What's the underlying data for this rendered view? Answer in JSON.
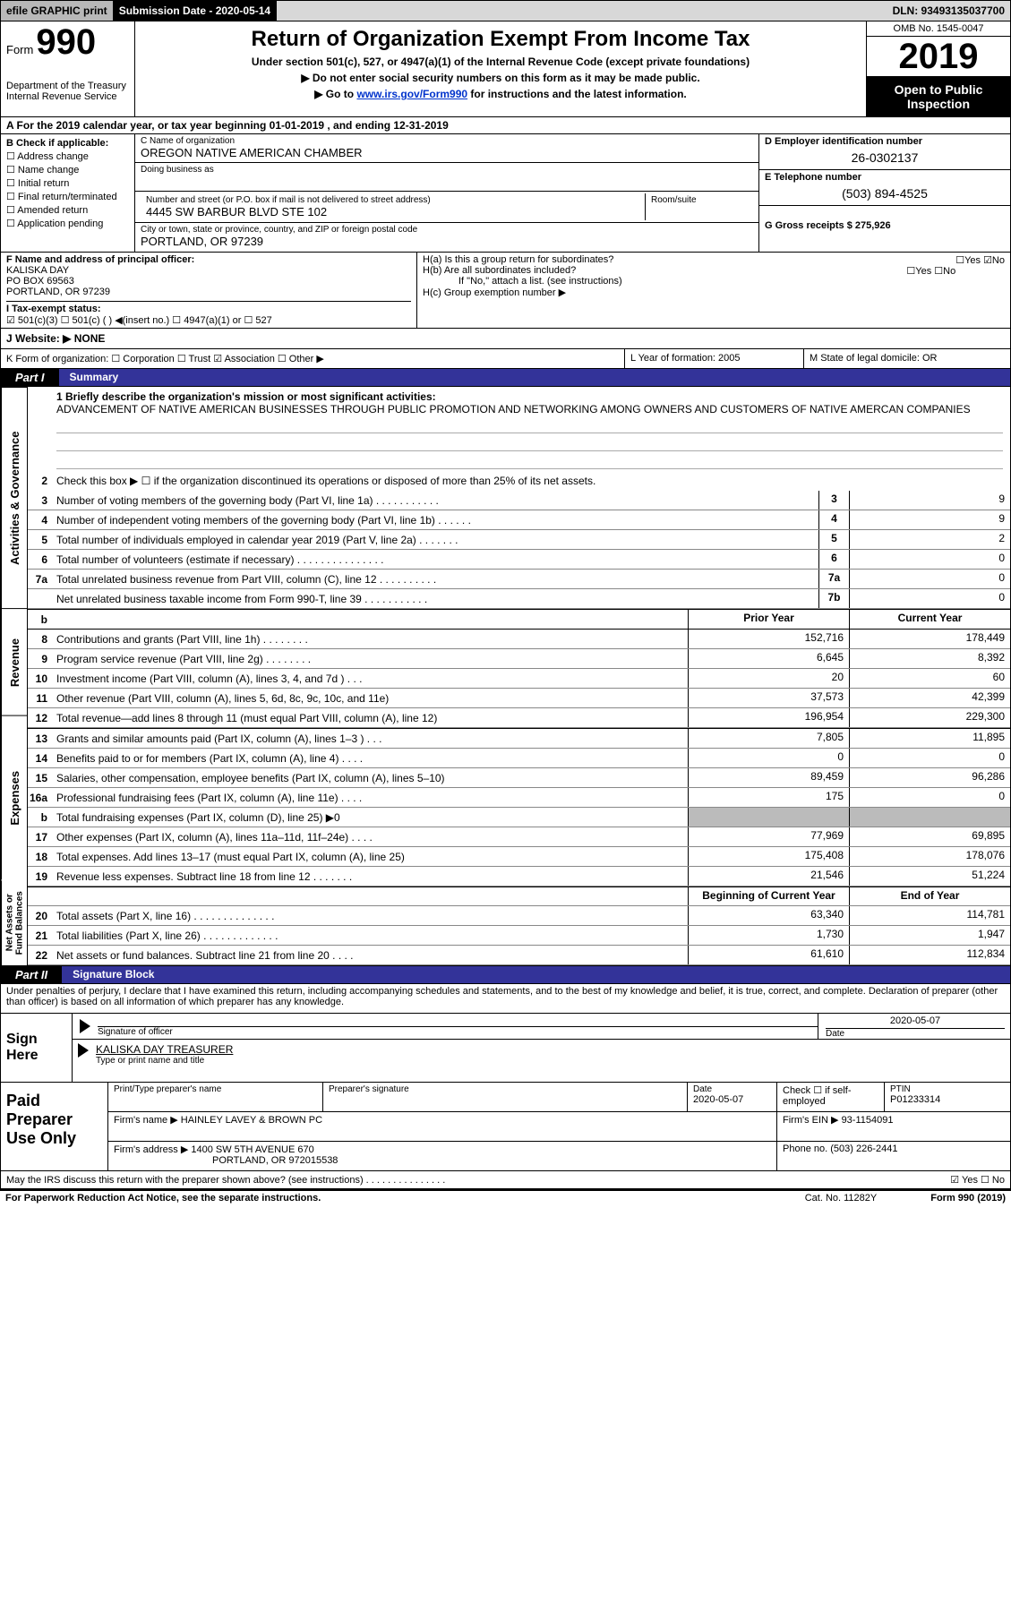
{
  "topbar": {
    "efile": "efile GRAPHIC print",
    "submission_label": "Submission Date - 2020-05-14",
    "dln": "DLN: 93493135037700"
  },
  "header": {
    "form_word": "Form",
    "form_num": "990",
    "dept": "Department of the Treasury\nInternal Revenue Service",
    "title": "Return of Organization Exempt From Income Tax",
    "subtitle": "Under section 501(c), 527, or 4947(a)(1) of the Internal Revenue Code (except private foundations)",
    "instr1": "▶ Do not enter social security numbers on this form as it may be made public.",
    "instr2_pre": "▶ Go to ",
    "instr2_link": "www.irs.gov/Form990",
    "instr2_post": " for instructions and the latest information.",
    "omb": "OMB No. 1545-0047",
    "year": "2019",
    "otp": "Open to Public Inspection"
  },
  "period": "A For the 2019 calendar year, or tax year beginning 01-01-2019     , and ending 12-31-2019",
  "col_b": {
    "hdr": "B Check if applicable:",
    "opts": [
      "☐ Address change",
      "☐ Name change",
      "☐ Initial return",
      "☐ Final return/terminated",
      "☐ Amended return",
      "☐ Application pending"
    ]
  },
  "col_c": {
    "name_lbl": "C Name of organization",
    "name_val": "OREGON NATIVE AMERICAN CHAMBER",
    "dba_lbl": "Doing business as",
    "dba_val": "",
    "street_lbl": "Number and street (or P.O. box if mail is not delivered to street address)",
    "room_lbl": "Room/suite",
    "street_val": "4445 SW BARBUR BLVD STE 102",
    "city_lbl": "City or town, state or province, country, and ZIP or foreign postal code",
    "city_val": "PORTLAND, OR  97239"
  },
  "col_de": {
    "ein_lbl": "D Employer identification number",
    "ein_val": "26-0302137",
    "tel_lbl": "E Telephone number",
    "tel_val": "(503) 894-4525",
    "gross_lbl": "G Gross receipts $ 275,926"
  },
  "row_f": {
    "f_lbl": "F Name and address of principal officer:",
    "f_val": "KALISKA DAY\nPO BOX 69563\nPORTLAND, OR  97239",
    "ha": "H(a)  Is this a group return for subordinates?",
    "ha_ans": "☐Yes  ☑No",
    "hb": "H(b)  Are all subordinates included?",
    "hb_ans": "☐Yes  ☐No",
    "hb_note": "If \"No,\" attach a list. (see instructions)",
    "i_lbl": "I   Tax-exempt status:",
    "i_opts": "☑ 501(c)(3)    ☐ 501(c) (  ) ◀(insert no.)    ☐ 4947(a)(1) or   ☐ 527",
    "hc": "H(c)  Group exemption number ▶"
  },
  "row_j": "J   Website: ▶  NONE",
  "row_k": "K Form of organization:   ☐ Corporation  ☐ Trust  ☑ Association  ☐ Other ▶",
  "row_l": "L Year of formation: 2005",
  "row_m": "M State of legal domicile: OR",
  "part1": {
    "tag": "Part I",
    "title": "Summary",
    "activities_label": "Activities & Governance",
    "mission_lbl": "1  Briefly describe the organization's mission or most significant activities:",
    "mission_val": "ADVANCEMENT OF NATIVE AMERICAN BUSINESSES THROUGH PUBLIC PROMOTION AND NETWORKING AMONG OWNERS AND CUSTOMERS OF NATIVE AMERCAN COMPANIES",
    "line2": "Check this box ▶ ☐ if the organization discontinued its operations or disposed of more than 25% of its net assets.",
    "rows_act": [
      {
        "num": "3",
        "desc": "Number of voting members of the governing body (Part VI, line 1a)   .   .   .   .   .   .   .   .   .   .   .",
        "box": "3",
        "v": "9"
      },
      {
        "num": "4",
        "desc": "Number of independent voting members of the governing body (Part VI, line 1b)   .   .   .   .   .   .",
        "box": "4",
        "v": "9"
      },
      {
        "num": "5",
        "desc": "Total number of individuals employed in calendar year 2019 (Part V, line 2a)   .   .   .   .   .   .   .",
        "box": "5",
        "v": "2"
      },
      {
        "num": "6",
        "desc": "Total number of volunteers (estimate if necessary)   .   .   .   .   .   .   .   .   .   .   .   .   .   .   .",
        "box": "6",
        "v": "0"
      },
      {
        "num": "7a",
        "desc": "Total unrelated business revenue from Part VIII, column (C), line 12   .   .   .   .   .   .   .   .   .   .",
        "box": "7a",
        "v": "0"
      },
      {
        "num": "",
        "desc": "Net unrelated business taxable income from Form 990-T, line 39   .   .   .   .   .   .   .   .   .   .   .",
        "box": "7b",
        "v": "0"
      }
    ],
    "col_hdr_prior": "Prior Year",
    "col_hdr_curr": "Current Year",
    "revenue_label": "Revenue",
    "rows_rev": [
      {
        "num": "8",
        "desc": "Contributions and grants (Part VIII, line 1h)   .   .   .   .   .   .   .   .",
        "p": "152,716",
        "c": "178,449"
      },
      {
        "num": "9",
        "desc": "Program service revenue (Part VIII, line 2g)   .   .   .   .   .   .   .   .",
        "p": "6,645",
        "c": "8,392"
      },
      {
        "num": "10",
        "desc": "Investment income (Part VIII, column (A), lines 3, 4, and 7d )   .   .   .",
        "p": "20",
        "c": "60"
      },
      {
        "num": "11",
        "desc": "Other revenue (Part VIII, column (A), lines 5, 6d, 8c, 9c, 10c, and 11e)",
        "p": "37,573",
        "c": "42,399"
      },
      {
        "num": "12",
        "desc": "Total revenue—add lines 8 through 11 (must equal Part VIII, column (A), line 12)",
        "p": "196,954",
        "c": "229,300"
      }
    ],
    "expenses_label": "Expenses",
    "rows_exp": [
      {
        "num": "13",
        "desc": "Grants and similar amounts paid (Part IX, column (A), lines 1–3 )   .   .   .",
        "p": "7,805",
        "c": "11,895"
      },
      {
        "num": "14",
        "desc": "Benefits paid to or for members (Part IX, column (A), line 4)   .   .   .   .",
        "p": "0",
        "c": "0"
      },
      {
        "num": "15",
        "desc": "Salaries, other compensation, employee benefits (Part IX, column (A), lines 5–10)",
        "p": "89,459",
        "c": "96,286"
      },
      {
        "num": "16a",
        "desc": "Professional fundraising fees (Part IX, column (A), line 11e)   .   .   .   .",
        "p": "175",
        "c": "0"
      },
      {
        "num": "b",
        "desc": "Total fundraising expenses (Part IX, column (D), line 25) ▶0",
        "p": "",
        "c": "",
        "shaded": true
      },
      {
        "num": "17",
        "desc": "Other expenses (Part IX, column (A), lines 11a–11d, 11f–24e)   .   .   .   .",
        "p": "77,969",
        "c": "69,895"
      },
      {
        "num": "18",
        "desc": "Total expenses. Add lines 13–17 (must equal Part IX, column (A), line 25)",
        "p": "175,408",
        "c": "178,076"
      },
      {
        "num": "19",
        "desc": "Revenue less expenses. Subtract line 18 from line 12   .   .   .   .   .   .   .",
        "p": "21,546",
        "c": "51,224"
      }
    ],
    "net_label": "Net Assets or Fund Balances",
    "col_hdr_boy": "Beginning of Current Year",
    "col_hdr_eoy": "End of Year",
    "rows_net": [
      {
        "num": "20",
        "desc": "Total assets (Part X, line 16)   .   .   .   .   .   .   .   .   .   .   .   .   .   .",
        "p": "63,340",
        "c": "114,781"
      },
      {
        "num": "21",
        "desc": "Total liabilities (Part X, line 26)   .   .   .   .   .   .   .   .   .   .   .   .   .",
        "p": "1,730",
        "c": "1,947"
      },
      {
        "num": "22",
        "desc": "Net assets or fund balances. Subtract line 21 from line 20   .   .   .   .",
        "p": "61,610",
        "c": "112,834"
      }
    ]
  },
  "part2": {
    "tag": "Part II",
    "title": "Signature Block",
    "decl": "Under penalties of perjury, I declare that I have examined this return, including accompanying schedules and statements, and to the best of my knowledge and belief, it is true, correct, and complete. Declaration of preparer (other than officer) is based on all information of which preparer has any knowledge."
  },
  "sign": {
    "lbl": "Sign Here",
    "sig_lbl": "Signature of officer",
    "date_val": "2020-05-07",
    "date_lbl": "Date",
    "name_val": "KALISKA DAY TREASURER",
    "name_lbl": "Type or print name and title"
  },
  "prep": {
    "lbl": "Paid Preparer Use Only",
    "c1": "Print/Type preparer's name",
    "c2": "Preparer's signature",
    "c3_lbl": "Date",
    "c3_val": "2020-05-07",
    "c4": "Check ☐ if self-employed",
    "c5_lbl": "PTIN",
    "c5_val": "P01233314",
    "firm_name_lbl": "Firm's name     ▶",
    "firm_name_val": "HAINLEY LAVEY & BROWN PC",
    "firm_ein_lbl": "Firm's EIN ▶",
    "firm_ein_val": "93-1154091",
    "firm_addr_lbl": "Firm's address ▶",
    "firm_addr_val1": "1400 SW 5TH AVENUE 670",
    "firm_addr_val2": "PORTLAND, OR  972015538",
    "phone_lbl": "Phone no.",
    "phone_val": "(503) 226-2441"
  },
  "bottom": {
    "q": "May the IRS discuss this return with the preparer shown above? (see instructions)   .   .   .   .   .   .   .   .   .   .   .   .   .   .   .",
    "ans": "☑ Yes  ☐ No"
  },
  "footer": {
    "left": "For Paperwork Reduction Act Notice, see the separate instructions.",
    "mid": "Cat. No. 11282Y",
    "right": "Form 990 (2019)"
  }
}
